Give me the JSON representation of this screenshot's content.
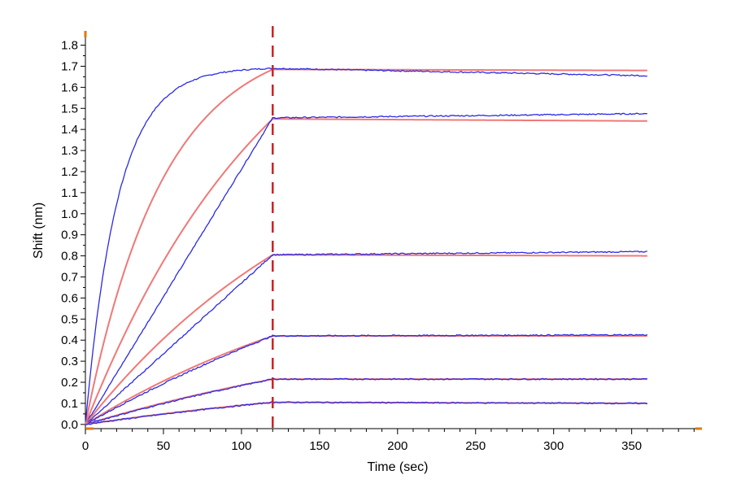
{
  "chart_data": {
    "type": "line",
    "xlabel": "Time (sec)",
    "ylabel": "Shift (nm)",
    "xlim": [
      0,
      395
    ],
    "ylim": [
      -0.02,
      1.86
    ],
    "xticks": [
      0,
      50,
      100,
      150,
      200,
      250,
      300,
      350
    ],
    "yticks": [
      0.0,
      0.1,
      0.2,
      0.3,
      0.4,
      0.5,
      0.6,
      0.7,
      0.8,
      0.9,
      1.0,
      1.1,
      1.2,
      1.3,
      1.4,
      1.5,
      1.6,
      1.7,
      1.8
    ],
    "grid": false,
    "legend": "none",
    "association_end_time": 120,
    "end_time": 360,
    "colors": {
      "measured": "#2a2ae6",
      "fit": "#f07878",
      "marker": "#cc2222",
      "axis_accent": "#e07800"
    },
    "series": [
      {
        "measured": {
          "plateau": 1.69,
          "k_on": 0.048,
          "dissoc_end": 1.655
        },
        "fit": {
          "end_assoc": 1.685,
          "k_on": 0.02,
          "dissoc_end": 1.68
        }
      },
      {
        "measured": {
          "plateau": 1.455,
          "k_on": 0.0,
          "dissoc_end": 1.475
        },
        "fit": {
          "end_assoc": 1.45,
          "k_on": 0.008,
          "dissoc_end": 1.44
        }
      },
      {
        "measured": {
          "plateau": 0.805,
          "k_on": 0.0,
          "dissoc_end": 0.82
        },
        "fit": {
          "end_assoc": 0.805,
          "k_on": 0.006,
          "dissoc_end": 0.8
        }
      },
      {
        "measured": {
          "plateau": 0.42,
          "k_on": 0.003,
          "dissoc_end": 0.425
        },
        "fit": {
          "end_assoc": 0.42,
          "k_on": 0.005,
          "dissoc_end": 0.42
        }
      },
      {
        "measured": {
          "plateau": 0.215,
          "k_on": 0.003,
          "dissoc_end": 0.215
        },
        "fit": {
          "end_assoc": 0.215,
          "k_on": 0.004,
          "dissoc_end": 0.215
        }
      },
      {
        "measured": {
          "plateau": 0.105,
          "k_on": 0.003,
          "dissoc_end": 0.1
        },
        "fit": {
          "end_assoc": 0.105,
          "k_on": 0.004,
          "dissoc_end": 0.1
        }
      }
    ]
  }
}
